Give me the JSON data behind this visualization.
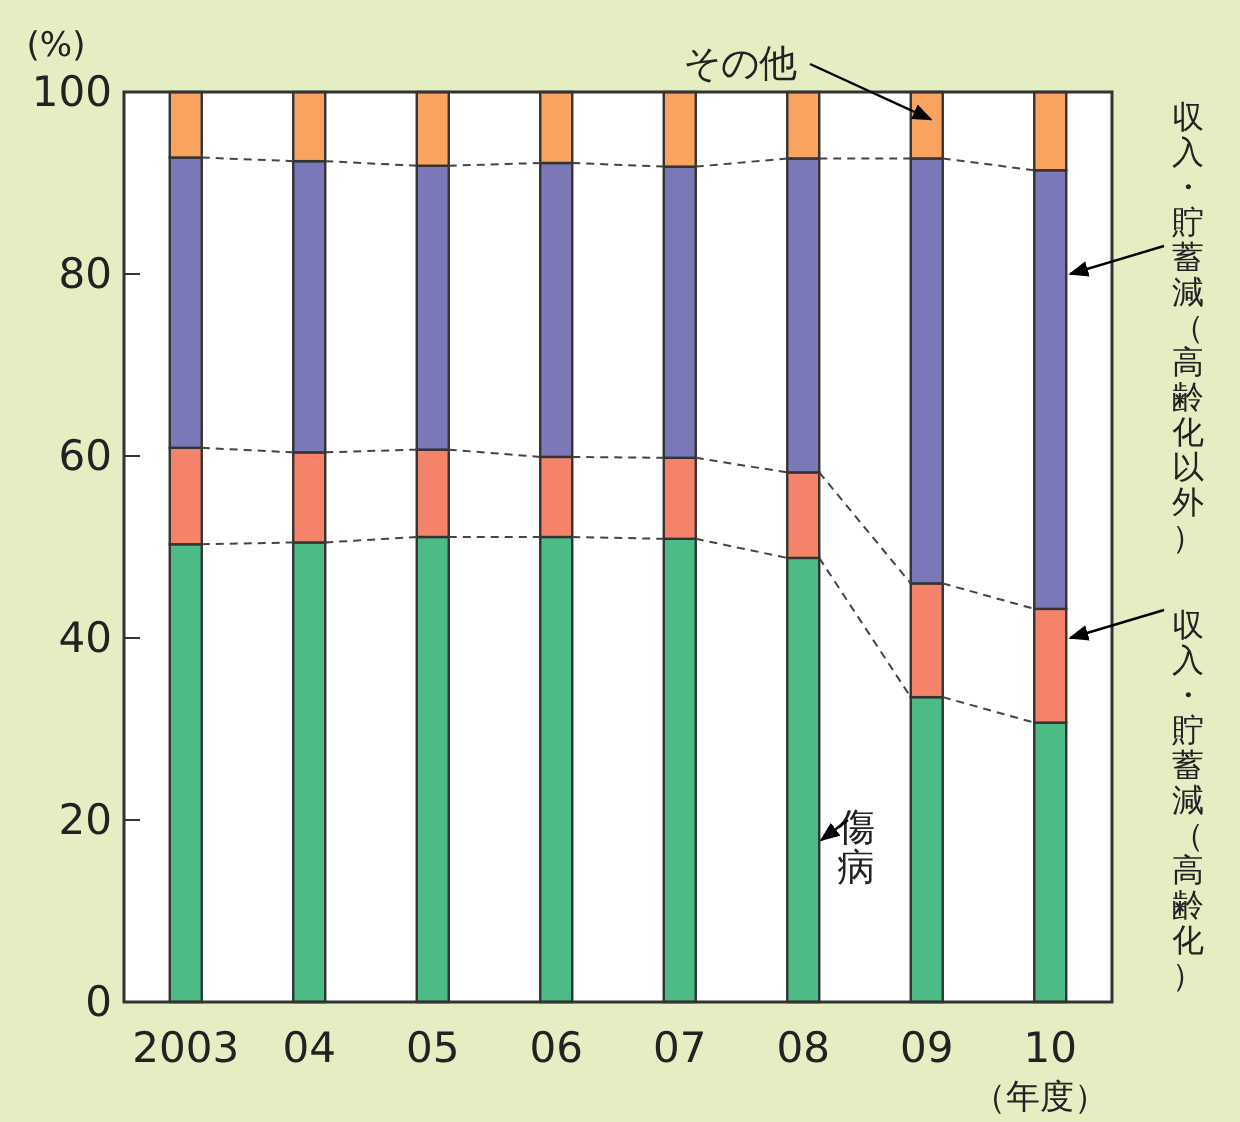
{
  "chart_data": {
    "type": "bar",
    "stacked": true,
    "ylabel": "(%)",
    "xlabel": "（年度）",
    "categories": [
      "2003",
      "04",
      "05",
      "06",
      "07",
      "08",
      "09",
      "10"
    ],
    "ylim": [
      0,
      100
    ],
    "yticks": [
      0,
      20,
      40,
      60,
      80,
      100
    ],
    "legend": false,
    "series": [
      {
        "name": "傷病",
        "color": "#4dbb86",
        "values": [
          50.3,
          50.5,
          51.1,
          51.1,
          50.9,
          48.8,
          33.5,
          30.7
        ]
      },
      {
        "name": "収入・貯蓄減（高齢化）",
        "color": "#f5836a",
        "values": [
          10.6,
          9.9,
          9.6,
          8.8,
          8.9,
          9.4,
          12.5,
          12.5
        ]
      },
      {
        "name": "収入・貯蓄減（高齢化以外）",
        "color": "#7b78b8",
        "values": [
          31.9,
          32.0,
          31.2,
          32.3,
          32.0,
          34.5,
          46.7,
          48.2
        ]
      },
      {
        "name": "その他",
        "color": "#f9a35f",
        "values": [
          7.2,
          7.6,
          8.1,
          7.8,
          8.2,
          7.3,
          7.3,
          8.6
        ]
      }
    ]
  }
}
